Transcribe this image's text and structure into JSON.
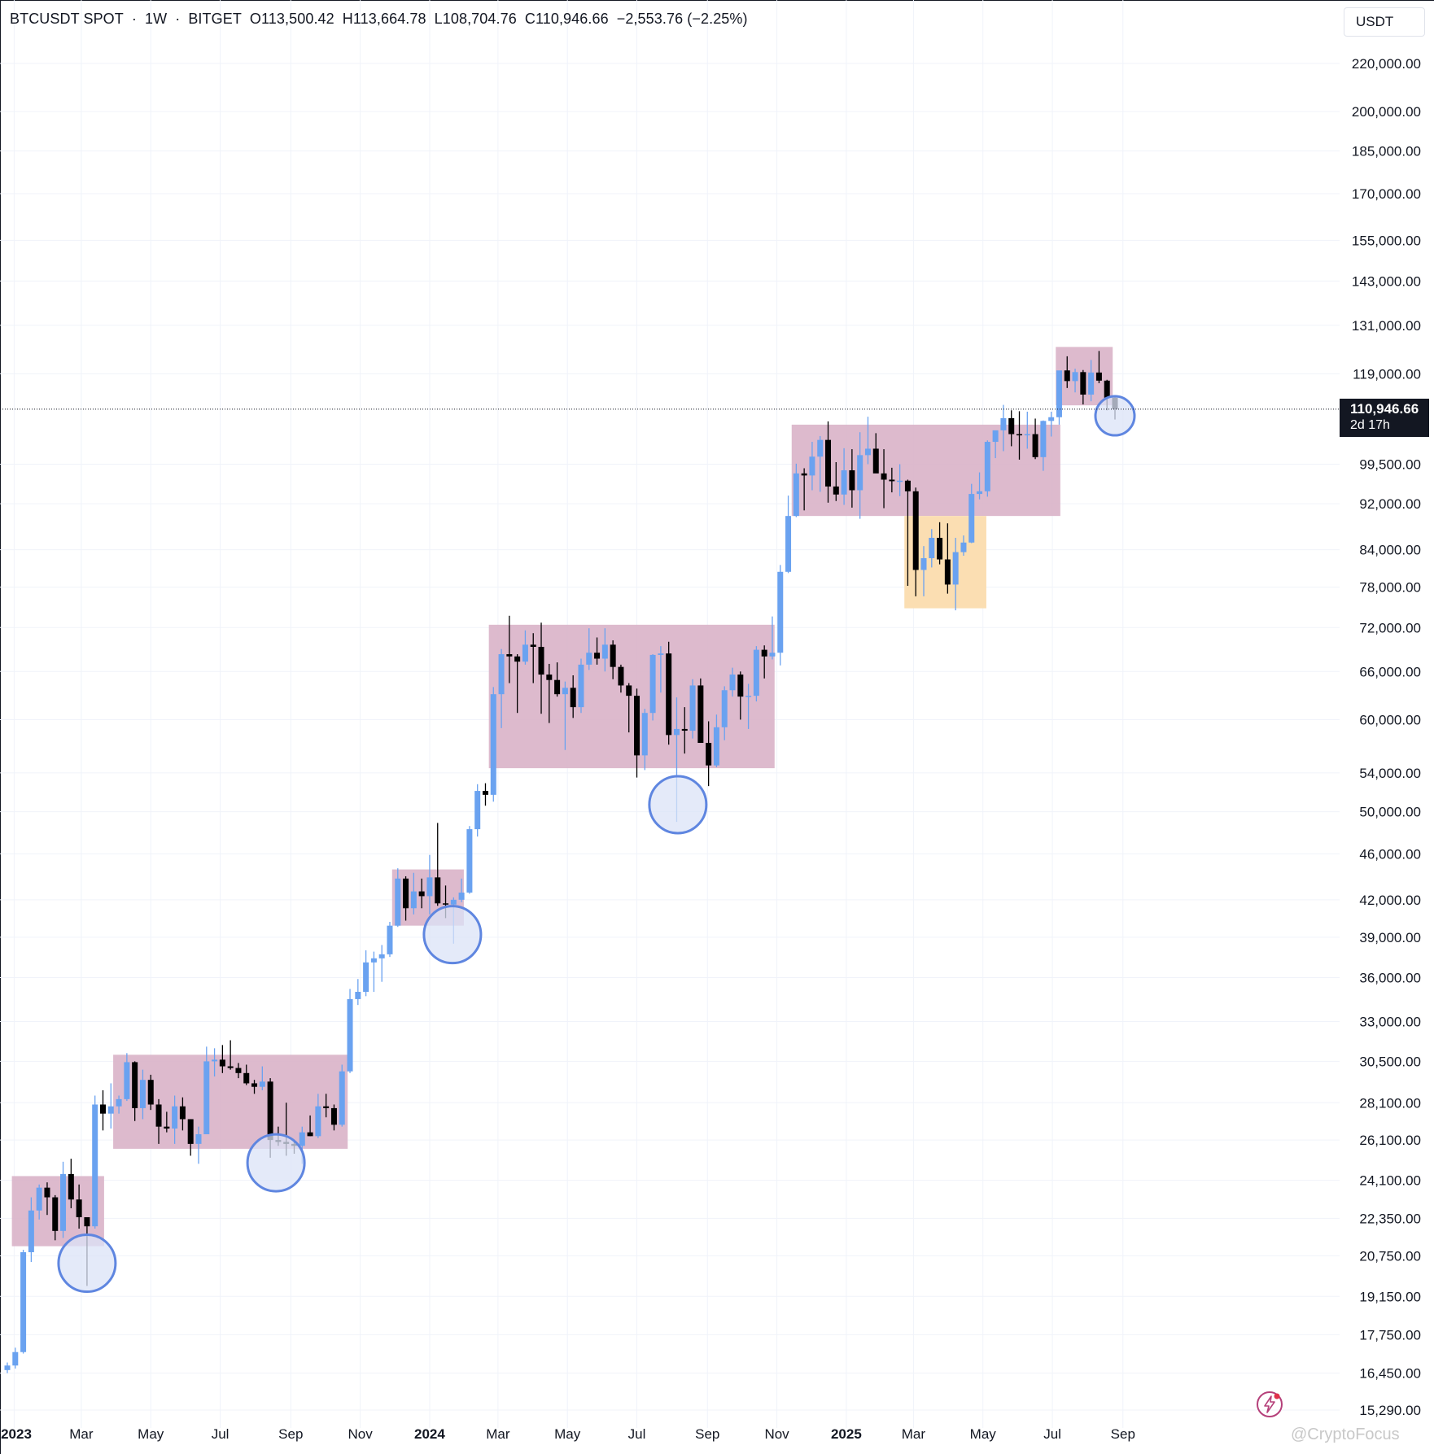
{
  "header": {
    "symbol": "BTCUSDT SPOT",
    "interval": "1W",
    "exchange": "BITGET",
    "sep": "·",
    "open": "O113,500.42",
    "high": "H113,664.78",
    "low": "L108,704.76",
    "close": "C110,946.66",
    "change": "−2,553.76 (−2.25%)"
  },
  "currency_button": "USDT",
  "last_price": {
    "value": "110,946.66",
    "countdown": "2d 17h"
  },
  "watermark": "@CryptoFocus",
  "colors": {
    "bull": "#6aa2f0",
    "bear": "#000000",
    "range_box": "#d9b2c8",
    "dip_box": "#fbdcae",
    "circle_stroke": "#5f86e0",
    "circle_fill": "#dbe3f7"
  },
  "chart_data": {
    "type": "candlestick",
    "y_scale": "log",
    "ylim": [
      14800,
      235000
    ],
    "xlim": [
      "2022-12-26",
      "2025-09-22"
    ],
    "y_ticks": [
      "220,000.00",
      "200,000.00",
      "185,000.00",
      "170,000.00",
      "155,000.00",
      "143,000.00",
      "131,000.00",
      "119,000.00",
      "99,500.00",
      "92,000.00",
      "84,000.00",
      "78,000.00",
      "72,000.00",
      "66,000.00",
      "60,000.00",
      "54,000.00",
      "50,000.00",
      "46,000.00",
      "42,000.00",
      "39,000.00",
      "36,000.00",
      "33,000.00",
      "30,500.00",
      "28,100.00",
      "26,100.00",
      "24,100.00",
      "22,350.00",
      "20,750.00",
      "19,150.00",
      "17,750.00",
      "16,450.00",
      "15,290.00"
    ],
    "x_ticks": [
      {
        "date": "2023-01-01",
        "label": "2023"
      },
      {
        "date": "2023-03-01",
        "label": "Mar"
      },
      {
        "date": "2023-05-01",
        "label": "May"
      },
      {
        "date": "2023-07-01",
        "label": "Jul"
      },
      {
        "date": "2023-09-01",
        "label": "Sep"
      },
      {
        "date": "2023-11-01",
        "label": "Nov"
      },
      {
        "date": "2024-01-01",
        "label": "2024"
      },
      {
        "date": "2024-03-01",
        "label": "Mar"
      },
      {
        "date": "2024-05-01",
        "label": "May"
      },
      {
        "date": "2024-07-01",
        "label": "Jul"
      },
      {
        "date": "2024-09-01",
        "label": "Sep"
      },
      {
        "date": "2024-11-01",
        "label": "Nov"
      },
      {
        "date": "2025-01-01",
        "label": "2025"
      },
      {
        "date": "2025-03-01",
        "label": "Mar"
      },
      {
        "date": "2025-05-01",
        "label": "May"
      },
      {
        "date": "2025-07-01",
        "label": "Jul"
      },
      {
        "date": "2025-09-01",
        "label": "Sep"
      }
    ],
    "candles": [
      [
        "2022-12-26",
        16550,
        16800,
        16450,
        16700
      ],
      [
        "2023-01-02",
        16700,
        17300,
        16600,
        17150
      ],
      [
        "2023-01-09",
        17150,
        21000,
        17100,
        20900
      ],
      [
        "2023-01-16",
        20900,
        23300,
        20500,
        22700
      ],
      [
        "2023-01-23",
        22700,
        23900,
        22300,
        23750
      ],
      [
        "2023-01-30",
        23750,
        24000,
        22500,
        23300
      ],
      [
        "2023-02-06",
        23300,
        23400,
        21400,
        21800
      ],
      [
        "2023-02-13",
        21800,
        25000,
        21500,
        24400
      ],
      [
        "2023-02-20",
        24400,
        25150,
        22800,
        23200
      ],
      [
        "2023-02-27",
        23200,
        23900,
        21900,
        22400
      ],
      [
        "2023-03-06",
        22400,
        22400,
        19550,
        22000
      ],
      [
        "2023-03-13",
        22000,
        28500,
        21900,
        28000
      ],
      [
        "2023-03-20",
        28000,
        28800,
        26600,
        27500
      ],
      [
        "2023-03-27",
        27500,
        29200,
        26700,
        27900
      ],
      [
        "2023-04-03",
        27900,
        28500,
        27500,
        28300
      ],
      [
        "2023-04-10",
        28300,
        31000,
        28200,
        30450
      ],
      [
        "2023-04-17",
        30450,
        30500,
        27100,
        27800
      ],
      [
        "2023-04-24",
        27800,
        30000,
        27200,
        29400
      ],
      [
        "2023-05-01",
        29400,
        29700,
        27700,
        28000
      ],
      [
        "2023-05-08",
        28000,
        28300,
        25900,
        26800
      ],
      [
        "2023-05-15",
        26800,
        27600,
        26500,
        26700
      ],
      [
        "2023-05-22",
        26700,
        28500,
        25900,
        27900
      ],
      [
        "2023-05-29",
        27900,
        28400,
        26600,
        27200
      ],
      [
        "2023-06-05",
        27200,
        27200,
        25300,
        25900
      ],
      [
        "2023-06-12",
        25900,
        26800,
        24900,
        26400
      ],
      [
        "2023-06-19",
        26400,
        31400,
        26400,
        30500
      ],
      [
        "2023-06-26",
        30500,
        31300,
        29600,
        30600
      ],
      [
        "2023-07-03",
        30600,
        31500,
        29800,
        30200
      ],
      [
        "2023-07-10",
        30200,
        31800,
        30000,
        30100
      ],
      [
        "2023-07-17",
        30100,
        30400,
        29500,
        29800
      ],
      [
        "2023-07-24",
        29800,
        30300,
        29100,
        29200
      ],
      [
        "2023-07-31",
        29200,
        29400,
        28600,
        29000
      ],
      [
        "2023-08-07",
        29000,
        30200,
        28800,
        29300
      ],
      [
        "2023-08-14",
        29300,
        29500,
        25200,
        26100
      ],
      [
        "2023-08-21",
        26100,
        26800,
        25800,
        26000
      ],
      [
        "2023-08-28",
        26000,
        28100,
        25300,
        25900
      ],
      [
        "2023-09-04",
        25900,
        26000,
        25400,
        25800
      ],
      [
        "2023-09-11",
        25800,
        26800,
        24900,
        26500
      ],
      [
        "2023-09-18",
        26500,
        27400,
        26300,
        26300
      ],
      [
        "2023-09-25",
        26300,
        28600,
        26200,
        27900
      ],
      [
        "2023-10-02",
        27900,
        28600,
        27300,
        27800
      ],
      [
        "2023-10-09",
        27800,
        28000,
        26600,
        26900
      ],
      [
        "2023-10-16",
        26900,
        30300,
        26800,
        29900
      ],
      [
        "2023-10-23",
        29900,
        35200,
        29800,
        34500
      ],
      [
        "2023-10-30",
        34500,
        35900,
        34100,
        35000
      ],
      [
        "2023-11-06",
        35000,
        38000,
        34700,
        37100
      ],
      [
        "2023-11-13",
        37100,
        37900,
        35000,
        37400
      ],
      [
        "2023-11-20",
        37400,
        38400,
        35700,
        37700
      ],
      [
        "2023-11-27",
        37700,
        40200,
        37500,
        39900
      ],
      [
        "2023-12-04",
        39900,
        44700,
        39800,
        43800
      ],
      [
        "2023-12-11",
        43800,
        44000,
        40300,
        41300
      ],
      [
        "2023-12-18",
        41300,
        44300,
        40800,
        42700
      ],
      [
        "2023-12-25",
        42700,
        43800,
        41300,
        42300
      ],
      [
        "2024-01-01",
        42300,
        45900,
        40800,
        43900
      ],
      [
        "2024-01-08",
        43900,
        48900,
        41500,
        41700
      ],
      [
        "2024-01-15",
        41700,
        43200,
        40500,
        41600
      ],
      [
        "2024-01-22",
        41600,
        42200,
        38500,
        42000
      ],
      [
        "2024-01-29",
        42000,
        43800,
        41800,
        42600
      ],
      [
        "2024-02-05",
        42600,
        48600,
        42500,
        48300
      ],
      [
        "2024-02-12",
        48300,
        52800,
        47600,
        52100
      ],
      [
        "2024-02-19",
        52100,
        52900,
        50600,
        51700
      ],
      [
        "2024-02-26",
        51700,
        64000,
        51000,
        63100
      ],
      [
        "2024-03-04",
        63100,
        69000,
        59000,
        68300
      ],
      [
        "2024-03-11",
        68300,
        73700,
        64500,
        68000
      ],
      [
        "2024-03-18",
        68000,
        68300,
        60800,
        67300
      ],
      [
        "2024-03-25",
        67300,
        71600,
        66900,
        69600
      ],
      [
        "2024-04-01",
        69600,
        71200,
        64500,
        69300
      ],
      [
        "2024-04-08",
        69300,
        72700,
        60700,
        65600
      ],
      [
        "2024-04-15",
        65600,
        67000,
        59600,
        64900
      ],
      [
        "2024-04-22",
        64900,
        67200,
        62800,
        63100
      ],
      [
        "2024-04-29",
        63100,
        64700,
        56500,
        63900
      ],
      [
        "2024-05-06",
        63900,
        65500,
        60200,
        61500
      ],
      [
        "2024-05-13",
        61500,
        67700,
        60800,
        66900
      ],
      [
        "2024-05-20",
        66900,
        71900,
        66200,
        68500
      ],
      [
        "2024-05-27",
        68500,
        70600,
        66900,
        67700
      ],
      [
        "2024-06-03",
        67700,
        71900,
        66000,
        69600
      ],
      [
        "2024-06-10",
        69600,
        70200,
        65000,
        66600
      ],
      [
        "2024-06-17",
        66600,
        66900,
        63300,
        64200
      ],
      [
        "2024-06-24",
        64200,
        64500,
        58500,
        62900
      ],
      [
        "2024-07-01",
        62900,
        63800,
        53500,
        55900
      ],
      [
        "2024-07-08",
        55900,
        61300,
        54300,
        60800
      ],
      [
        "2024-07-15",
        60800,
        68300,
        59900,
        68200
      ],
      [
        "2024-07-22",
        68200,
        69400,
        63300,
        68400
      ],
      [
        "2024-07-29",
        68400,
        70000,
        57100,
        58200
      ],
      [
        "2024-08-05",
        58200,
        62700,
        49000,
        58900
      ],
      [
        "2024-08-12",
        58900,
        61500,
        56100,
        58700
      ],
      [
        "2024-08-19",
        58700,
        65000,
        57800,
        64200
      ],
      [
        "2024-08-26",
        64200,
        65100,
        57300,
        57300
      ],
      [
        "2024-09-02",
        57300,
        59800,
        52600,
        54800
      ],
      [
        "2024-09-09",
        54800,
        60600,
        54600,
        59100
      ],
      [
        "2024-09-16",
        59100,
        64100,
        57600,
        63600
      ],
      [
        "2024-09-23",
        63600,
        66500,
        62800,
        65600
      ],
      [
        "2024-09-30",
        65600,
        66000,
        60000,
        62800
      ],
      [
        "2024-10-07",
        62800,
        64400,
        58900,
        62900
      ],
      [
        "2024-10-14",
        62900,
        69400,
        62200,
        68900
      ],
      [
        "2024-10-21",
        68900,
        69500,
        65100,
        68000
      ],
      [
        "2024-10-28",
        68000,
        73600,
        67600,
        68500
      ],
      [
        "2024-11-04",
        68500,
        81500,
        66800,
        80400
      ],
      [
        "2024-11-11",
        80400,
        93500,
        80200,
        89800
      ],
      [
        "2024-11-18",
        89800,
        99600,
        89600,
        97700
      ],
      [
        "2024-11-25",
        97700,
        98700,
        90800,
        97300
      ],
      [
        "2024-12-02",
        97300,
        104000,
        94500,
        101000
      ],
      [
        "2024-12-09",
        101000,
        105200,
        94200,
        104400
      ],
      [
        "2024-12-16",
        104400,
        108300,
        92200,
        95200
      ],
      [
        "2024-12-23",
        95200,
        99900,
        92500,
        93700
      ],
      [
        "2024-12-30",
        93700,
        102700,
        91800,
        98300
      ],
      [
        "2025-01-06",
        98300,
        102500,
        91300,
        94500
      ],
      [
        "2025-01-13",
        94500,
        106000,
        89300,
        101300
      ],
      [
        "2025-01-20",
        101300,
        109300,
        99500,
        102600
      ],
      [
        "2025-01-27",
        102600,
        105800,
        97800,
        97700
      ],
      [
        "2025-02-03",
        97700,
        102500,
        91200,
        96500
      ],
      [
        "2025-02-10",
        96500,
        98800,
        94100,
        96200
      ],
      [
        "2025-02-17",
        96200,
        99500,
        93400,
        96300
      ],
      [
        "2025-02-24",
        96300,
        96500,
        78200,
        94300
      ],
      [
        "2025-03-03",
        94300,
        95000,
        76600,
        80700
      ],
      [
        "2025-03-10",
        80700,
        84600,
        76600,
        82600
      ],
      [
        "2025-03-17",
        82600,
        87500,
        81100,
        86000
      ],
      [
        "2025-03-24",
        86000,
        88700,
        81600,
        82400
      ],
      [
        "2025-03-31",
        82400,
        88500,
        77000,
        78400
      ],
      [
        "2025-04-07",
        78400,
        86000,
        74500,
        83600
      ],
      [
        "2025-04-14",
        83600,
        86400,
        83000,
        85200
      ],
      [
        "2025-04-21",
        85200,
        95700,
        85100,
        93800
      ],
      [
        "2025-04-28",
        93800,
        97900,
        92800,
        94300
      ],
      [
        "2025-05-05",
        94300,
        104300,
        93300,
        104000
      ],
      [
        "2025-05-12",
        104000,
        105800,
        100700,
        106400
      ],
      [
        "2025-05-19",
        106400,
        111900,
        102100,
        109000
      ],
      [
        "2025-05-26",
        109000,
        110700,
        103100,
        105600
      ],
      [
        "2025-06-02",
        105600,
        110500,
        100400,
        105500
      ],
      [
        "2025-06-09",
        105500,
        110400,
        102600,
        105600
      ],
      [
        "2025-06-16",
        105600,
        108900,
        100500,
        100900
      ],
      [
        "2025-06-23",
        100900,
        108500,
        98200,
        108400
      ],
      [
        "2025-06-30",
        108400,
        110400,
        105100,
        109200
      ],
      [
        "2025-07-07",
        109200,
        119500,
        107600,
        119800
      ],
      [
        "2025-07-14",
        119800,
        123200,
        115700,
        117300
      ],
      [
        "2025-07-21",
        117300,
        120200,
        114700,
        119400
      ],
      [
        "2025-07-28",
        119400,
        119900,
        112000,
        114200
      ],
      [
        "2025-08-04",
        114200,
        122300,
        112700,
        119300
      ],
      [
        "2025-08-11",
        119300,
        124500,
        116800,
        117400
      ],
      [
        "2025-08-18",
        117400,
        117600,
        110700,
        113500
      ],
      [
        "2025-08-25",
        113500,
        113664.78,
        108704.76,
        110946.66
      ]
    ],
    "range_boxes": [
      {
        "from": "2022-12-30",
        "to": "2023-03-21",
        "low": 21150,
        "high": 24300
      },
      {
        "from": "2023-03-29",
        "to": "2023-10-21",
        "low": 25650,
        "high": 30900
      },
      {
        "from": "2023-11-29",
        "to": "2024-01-31",
        "low": 39900,
        "high": 44600
      },
      {
        "from": "2024-02-22",
        "to": "2024-10-30",
        "low": 54500,
        "high": 72400
      },
      {
        "from": "2024-11-14",
        "to": "2025-07-08",
        "low": 89800,
        "high": 107600
      },
      {
        "from": "2025-07-04",
        "to": "2025-08-23",
        "low": 111800,
        "high": 125500
      }
    ],
    "dip_boxes": [
      {
        "from": "2025-02-21",
        "to": "2025-05-04",
        "low": 74800,
        "high": 89800
      }
    ],
    "circles": [
      {
        "date": "2023-03-06",
        "price": 20450
      },
      {
        "date": "2023-08-19",
        "price": 24950
      },
      {
        "date": "2024-01-21",
        "price": 39200
      },
      {
        "date": "2024-08-06",
        "price": 50700
      },
      {
        "date": "2025-08-25",
        "price": 109500
      }
    ],
    "last_close": 110946.66
  }
}
